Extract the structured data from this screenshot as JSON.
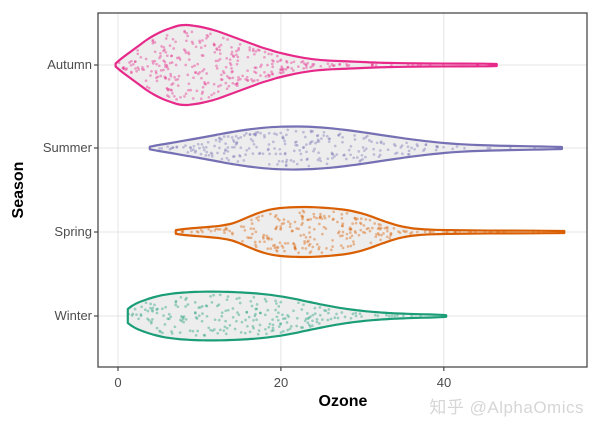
{
  "watermark": {
    "text": "知乎 @AlphaOmics",
    "color": "#d6d6d6"
  },
  "chart_data": {
    "type": "violin",
    "orientation": "horizontal",
    "title": "",
    "xlabel": "Ozone",
    "ylabel": "Season",
    "x_ticks": [
      0,
      20,
      40
    ],
    "xlim": [
      -2.5,
      57.5
    ],
    "grid": true,
    "legend": false,
    "categories": [
      "Autumn",
      "Summer",
      "Spring",
      "Winter"
    ],
    "panel_border_color": "#4a4a4a",
    "grid_color": "#e4e4e4",
    "tick_color": "#4a4a4a",
    "violin_fill": "#ededed",
    "series": [
      {
        "name": "Autumn",
        "color": "#E7298A",
        "range": [
          -0.3,
          46.5
        ],
        "peak_at": 8.5,
        "n_points": 330,
        "profile": [
          [
            -0.3,
            1.5
          ],
          [
            0.5,
            7
          ],
          [
            1.5,
            13
          ],
          [
            2.5,
            19
          ],
          [
            3.5,
            25
          ],
          [
            4.5,
            30
          ],
          [
            5.5,
            34
          ],
          [
            6.5,
            37
          ],
          [
            7.5,
            39.5
          ],
          [
            8.5,
            40
          ],
          [
            9.5,
            39
          ],
          [
            10.5,
            37.5
          ],
          [
            11.5,
            35.5
          ],
          [
            12.5,
            33
          ],
          [
            13.5,
            30
          ],
          [
            14.5,
            27
          ],
          [
            15.5,
            24
          ],
          [
            16.5,
            21
          ],
          [
            17.5,
            18
          ],
          [
            18.5,
            15.5
          ],
          [
            19.5,
            13
          ],
          [
            20.5,
            11
          ],
          [
            21.5,
            9.2
          ],
          [
            22.5,
            7.6
          ],
          [
            23.5,
            6.3
          ],
          [
            24.5,
            5.3
          ],
          [
            25.5,
            4.6
          ],
          [
            26.5,
            4.2
          ],
          [
            27.5,
            3.9
          ],
          [
            28.5,
            3.5
          ],
          [
            30,
            3
          ],
          [
            31.5,
            2.5
          ],
          [
            33,
            2.1
          ],
          [
            35,
            1.8
          ],
          [
            38,
            1.5
          ],
          [
            42,
            1.4
          ],
          [
            45,
            1.3
          ],
          [
            46.5,
            1
          ]
        ]
      },
      {
        "name": "Summer",
        "color": "#7570B3",
        "range": [
          3.9,
          54.5
        ],
        "peak_at": 22,
        "n_points": 250,
        "profile": [
          [
            3.9,
            1.3
          ],
          [
            5,
            3
          ],
          [
            6.5,
            5
          ],
          [
            8,
            7.2
          ],
          [
            10,
            10
          ],
          [
            12,
            13
          ],
          [
            14,
            16
          ],
          [
            16,
            18.5
          ],
          [
            18,
            20.3
          ],
          [
            20,
            21.3
          ],
          [
            22,
            21.5
          ],
          [
            24,
            21
          ],
          [
            26,
            19.8
          ],
          [
            28,
            18
          ],
          [
            30,
            15.8
          ],
          [
            32,
            13.4
          ],
          [
            34,
            11
          ],
          [
            36,
            8.7
          ],
          [
            38,
            6.7
          ],
          [
            40,
            5
          ],
          [
            42,
            3.8
          ],
          [
            44,
            3
          ],
          [
            46,
            2.5
          ],
          [
            48,
            2.1
          ],
          [
            50,
            1.8
          ],
          [
            52,
            1.5
          ],
          [
            54.5,
            1
          ]
        ]
      },
      {
        "name": "Spring",
        "color": "#D95F02",
        "range": [
          7.1,
          54.8
        ],
        "peak_at": 23,
        "n_points": 260,
        "profile": [
          [
            7.1,
            1.8
          ],
          [
            8,
            2.9
          ],
          [
            9.5,
            4
          ],
          [
            11,
            5
          ],
          [
            12.5,
            6.2
          ],
          [
            14,
            8.5
          ],
          [
            15,
            11.5
          ],
          [
            16,
            15
          ],
          [
            17,
            18.3
          ],
          [
            18,
            21
          ],
          [
            19,
            22.9
          ],
          [
            20,
            24
          ],
          [
            21,
            24.6
          ],
          [
            22,
            24.9
          ],
          [
            23,
            25
          ],
          [
            24,
            24.8
          ],
          [
            25,
            24.4
          ],
          [
            26,
            23.8
          ],
          [
            27,
            23
          ],
          [
            28,
            22
          ],
          [
            29,
            20.5
          ],
          [
            30,
            18.4
          ],
          [
            31,
            15.8
          ],
          [
            32,
            12.8
          ],
          [
            33,
            9.9
          ],
          [
            34,
            7.3
          ],
          [
            35,
            5.3
          ],
          [
            36,
            3.9
          ],
          [
            37,
            3
          ],
          [
            38.5,
            2.3
          ],
          [
            40.5,
            1.9
          ],
          [
            43,
            1.6
          ],
          [
            47,
            1.4
          ],
          [
            51,
            1.3
          ],
          [
            54.8,
            1
          ]
        ]
      },
      {
        "name": "Winter",
        "color": "#1B9E77",
        "range": [
          1.2,
          40.3
        ],
        "peak_at": 11.5,
        "n_points": 230,
        "profile": [
          [
            1.2,
            7
          ],
          [
            1.8,
            10.5
          ],
          [
            2.5,
            13.5
          ],
          [
            3.5,
            16.5
          ],
          [
            4.5,
            19
          ],
          [
            5.5,
            20.9
          ],
          [
            6.5,
            22.2
          ],
          [
            7.5,
            23.1
          ],
          [
            8.5,
            23.7
          ],
          [
            9.5,
            24.1
          ],
          [
            10.5,
            24.3
          ],
          [
            11.5,
            24.4
          ],
          [
            12.5,
            24.3
          ],
          [
            13.5,
            24.1
          ],
          [
            14.5,
            23.8
          ],
          [
            15.5,
            23.4
          ],
          [
            16.5,
            22.9
          ],
          [
            17.5,
            22.2
          ],
          [
            18.5,
            21.3
          ],
          [
            19.5,
            20.2
          ],
          [
            20.5,
            18.9
          ],
          [
            21.5,
            17.4
          ],
          [
            22.5,
            15.7
          ],
          [
            23.5,
            14
          ],
          [
            24.5,
            12.3
          ],
          [
            25.5,
            10.7
          ],
          [
            26.5,
            9.2
          ],
          [
            27.5,
            7.8
          ],
          [
            28.5,
            6.6
          ],
          [
            29.5,
            5.6
          ],
          [
            30.5,
            4.7
          ],
          [
            31.5,
            4
          ],
          [
            32.5,
            3.4
          ],
          [
            33.5,
            2.9
          ],
          [
            34.5,
            2.5
          ],
          [
            35.5,
            2.2
          ],
          [
            36.5,
            1.9
          ],
          [
            37.5,
            1.7
          ],
          [
            38.5,
            1.5
          ],
          [
            39.5,
            1.2
          ],
          [
            40.3,
            0.8
          ]
        ]
      }
    ]
  }
}
